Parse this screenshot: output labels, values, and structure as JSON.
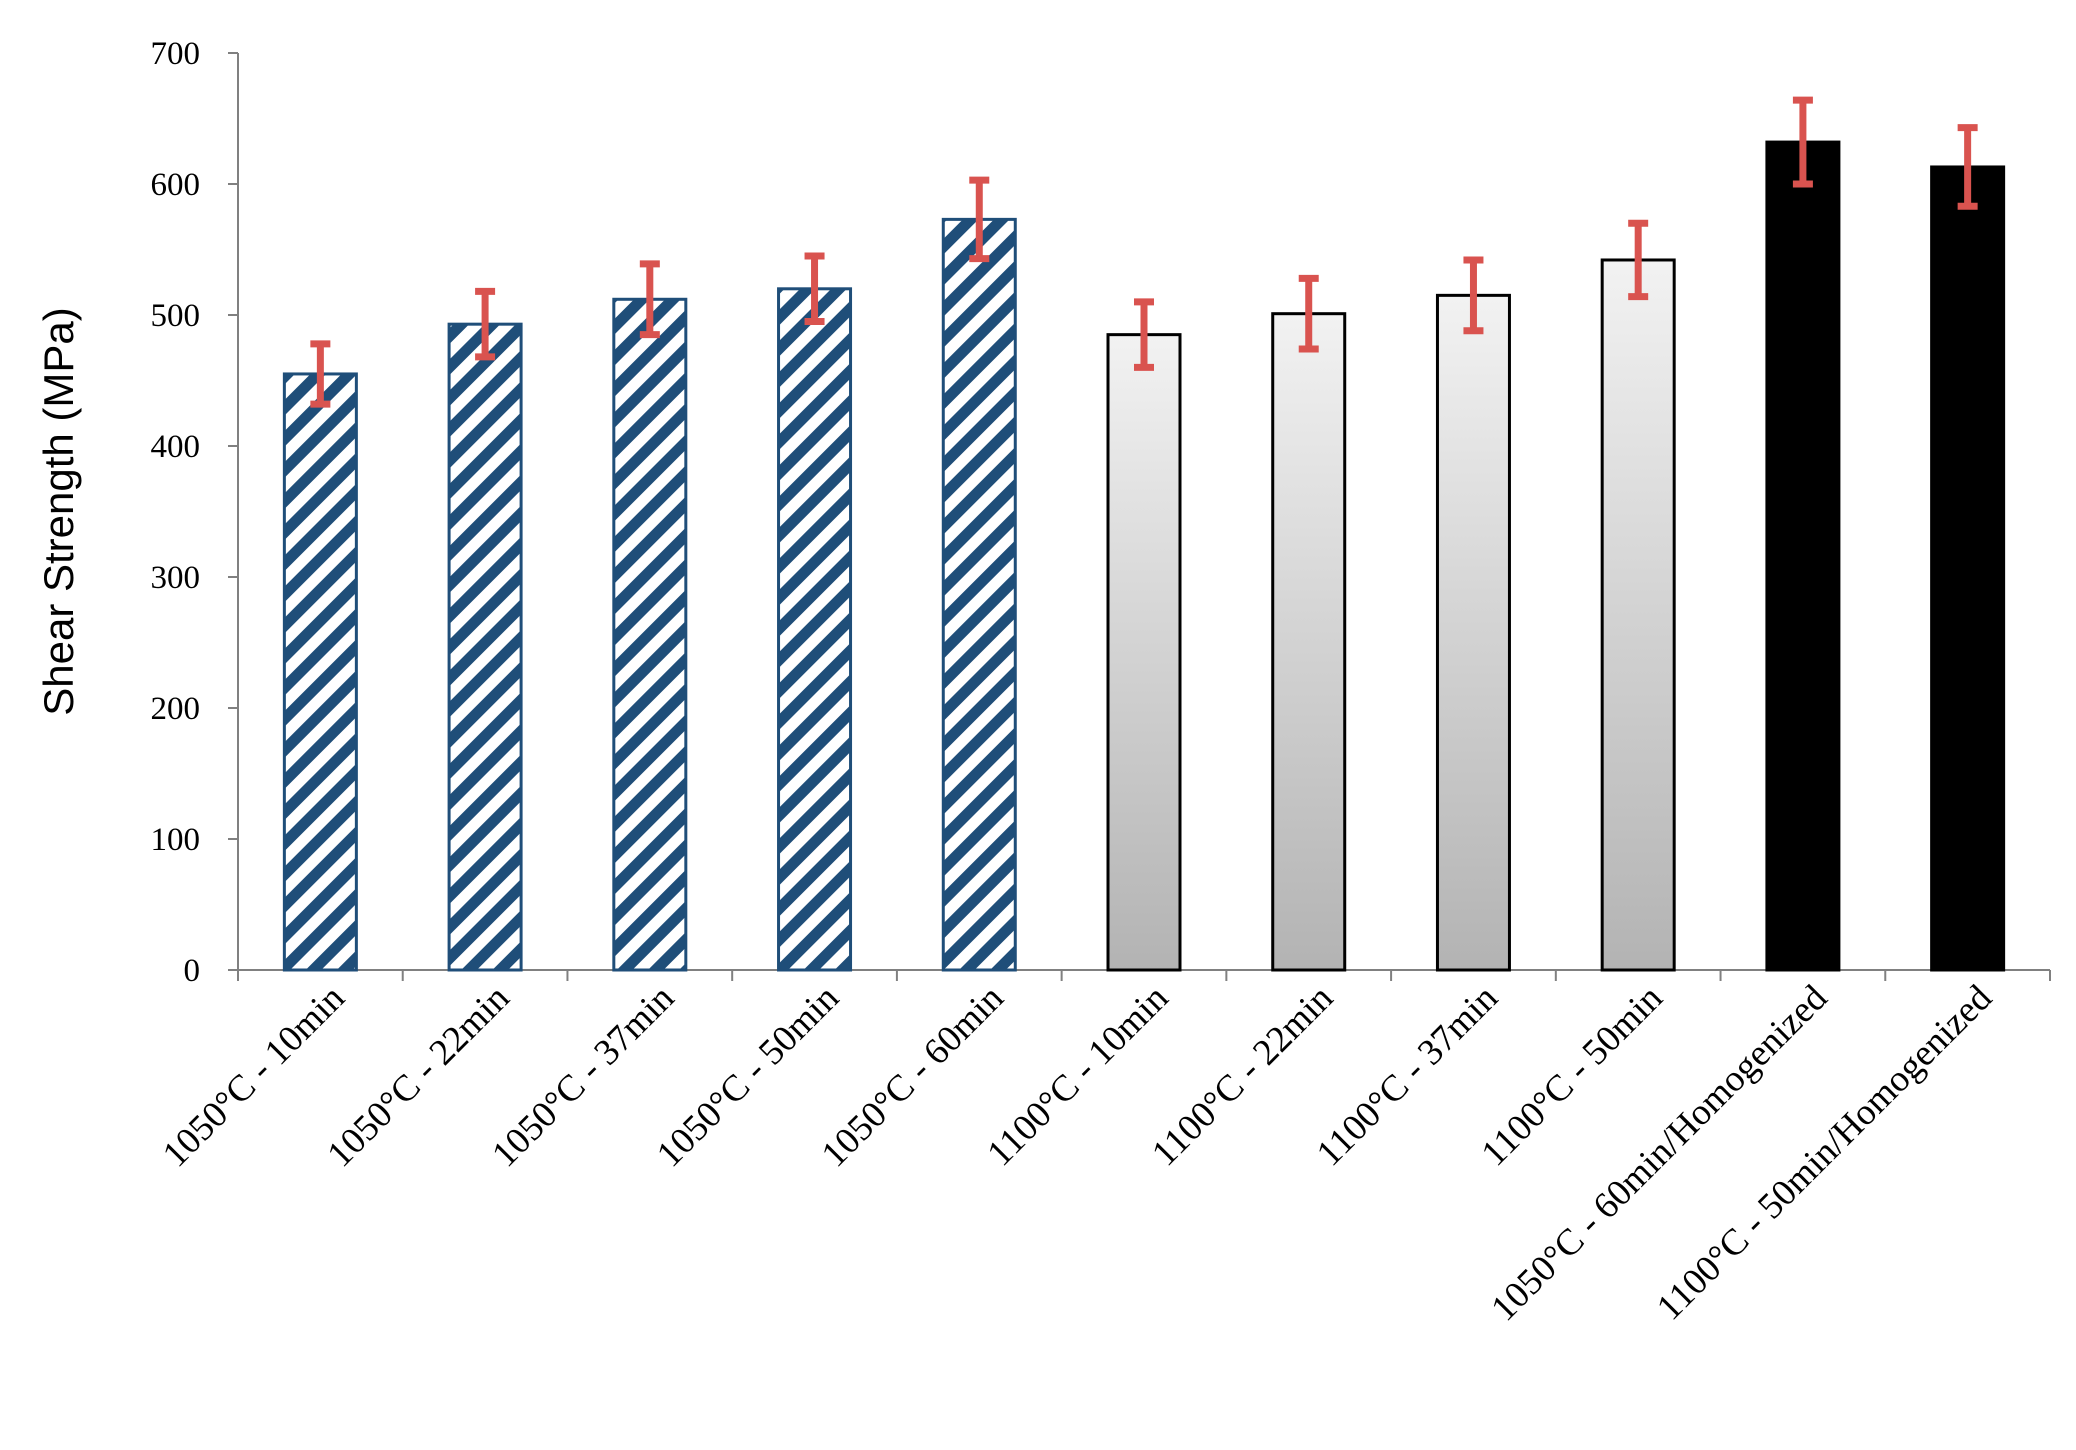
{
  "chart_data": {
    "type": "bar",
    "title": "",
    "xlabel": "",
    "ylabel": "Shear Strength (MPa)",
    "ylim": [
      0,
      700
    ],
    "yticks": [
      0,
      100,
      200,
      300,
      400,
      500,
      600,
      700
    ],
    "grid": false,
    "legend": "none",
    "categories": [
      "1050°C - 10min",
      "1050°C - 22min",
      "1050°C - 37min",
      "1050°C - 50min",
      "1050°C - 60min",
      "1100°C - 10min",
      "1100°C - 22min",
      "1100°C - 37min",
      "1100°C - 50min",
      "1050°C - 60min/Homogenized",
      "1100°C - 50min/Homogenized"
    ],
    "values": [
      455,
      493,
      512,
      520,
      573,
      485,
      501,
      515,
      542,
      632,
      613
    ],
    "error": [
      23,
      25,
      27,
      25,
      30,
      25,
      27,
      27,
      28,
      32,
      30
    ],
    "fill_styles": [
      "hatch",
      "hatch",
      "hatch",
      "hatch",
      "hatch",
      "gradient",
      "gradient",
      "gradient",
      "gradient",
      "solid",
      "solid"
    ],
    "colors": {
      "hatch": "#1f4e79",
      "gradient_top": "#f2f2f2",
      "gradient_bottom": "#b3b3b3",
      "solid": "#000000",
      "error_bar": "#d9534f",
      "axis": "#808080"
    }
  }
}
